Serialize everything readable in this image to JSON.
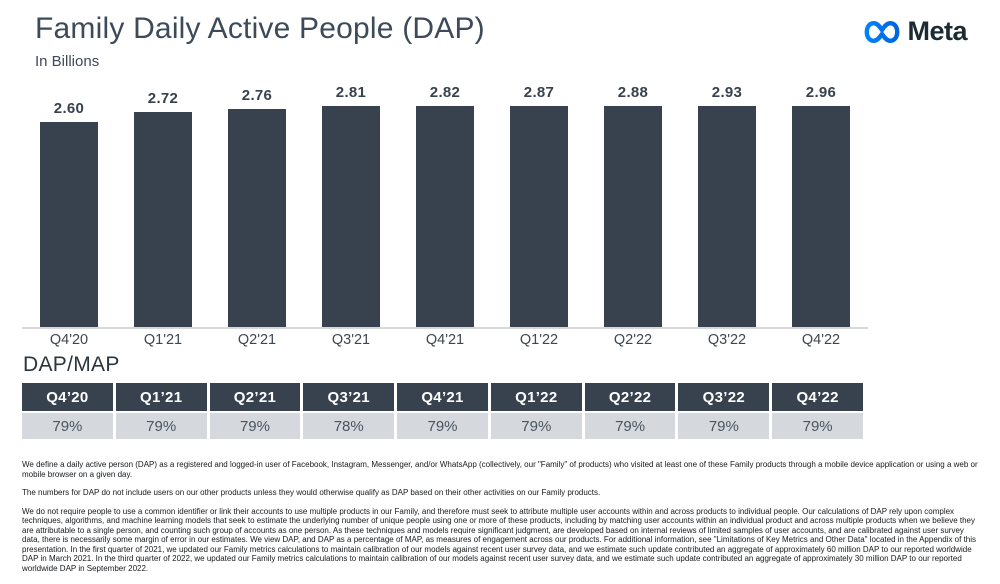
{
  "header": {
    "title": "Family Daily Active People (DAP)",
    "subtitle": "In Billions",
    "brand": "Meta",
    "brand_logo_icon": "meta-infinity-icon"
  },
  "colors": {
    "bar": "#37424E",
    "title": "#3C4A59",
    "table_header_bg": "#37424E",
    "table_row_bg": "#D5D9DE",
    "axis_line": "#D8D8D8",
    "footnote": "#16191C",
    "brand_text": "#1C2B33",
    "logo_blue_left": "#0082FB",
    "logo_blue_right": "#0064E0"
  },
  "chart_data": {
    "type": "bar",
    "title": "Family Daily Active People (DAP)",
    "ylabel": "In Billions",
    "xlabel": "",
    "categories": [
      "Q4'20",
      "Q1'21",
      "Q2'21",
      "Q3'21",
      "Q4'21",
      "Q1'22",
      "Q2'22",
      "Q3'22",
      "Q4'22"
    ],
    "values": [
      2.6,
      2.72,
      2.76,
      2.81,
      2.82,
      2.87,
      2.88,
      2.93,
      2.96
    ],
    "data_labels": [
      "2.60",
      "2.72",
      "2.76",
      "2.81",
      "2.82",
      "2.87",
      "2.88",
      "2.93",
      "2.96"
    ],
    "ylim": [
      0,
      3.0
    ],
    "grid": false,
    "legend": false,
    "bar_color": "#37424E",
    "data_labels_position": "above-bars"
  },
  "table": {
    "title": "DAP/MAP",
    "quarters": [
      "Q4’20",
      "Q1’21",
      "Q2’21",
      "Q3’21",
      "Q4’21",
      "Q1’22",
      "Q2’22",
      "Q3’22",
      "Q4’22"
    ],
    "values": [
      "79%",
      "79%",
      "79%",
      "78%",
      "79%",
      "79%",
      "79%",
      "79%",
      "79%"
    ]
  },
  "footnotes": [
    "We define a daily active person (DAP) as a registered and logged-in user of Facebook, Instagram, Messenger, and/or WhatsApp (collectively, our \"Family\" of products) who visited at least one of these Family products through a mobile device application or using a web or mobile browser on a given day.",
    "The numbers for DAP do not include users on our other products unless they would otherwise qualify as DAP based on their other activities on our Family products.",
    "We do not require people to use a common identifier or link their accounts to use multiple products in our Family, and therefore must seek to attribute multiple user accounts within and across products to individual people. Our calculations of DAP rely upon complex techniques, algorithms, and machine learning models that seek to estimate the underlying number of unique people using one or more of these products, including by matching user accounts within an individual product and across multiple products when we believe they are attributable to a single person, and counting such group of accounts as one person. As these techniques and models require significant judgment, are developed based on internal reviews of limited samples of user accounts, and are calibrated against user survey data, there is necessarily some margin of error in our estimates. We view DAP, and DAP as a percentage of MAP, as measures of engagement across our products. For additional information, see \"Limitations of Key Metrics and Other Data\" located in the Appendix of this presentation. In the first quarter of 2021, we updated our Family metrics calculations to maintain calibration of our models against recent user survey data, and we estimate such update contributed an aggregate of approximately 60 million DAP to our reported worldwide DAP in March 2021. In the third quarter of 2022, we updated our Family metrics calculations to maintain calibration of our models against recent user survey data, and we estimate such update contributed an aggregate of approximately 30 million DAP to our reported worldwide DAP in September 2022."
  ]
}
